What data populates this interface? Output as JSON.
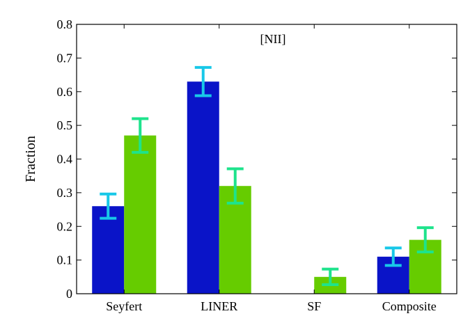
{
  "chart_data": {
    "type": "bar",
    "annotation": "[NII]",
    "ylabel": "Fraction",
    "xlabel": "",
    "categories": [
      "Seyfert",
      "LINER",
      "SF",
      "Composite"
    ],
    "ylim": [
      0,
      0.8
    ],
    "yticks": [
      0,
      0.1,
      0.2,
      0.3,
      0.4,
      0.5,
      0.6,
      0.7,
      0.8
    ],
    "ytick_labels": [
      "0",
      "0.1",
      "0.2",
      "0.3",
      "0.4",
      "0.5",
      "0.6",
      "0.7",
      "0.8"
    ],
    "grid": false,
    "legend": "none",
    "series": [
      {
        "color": "#0a14c8",
        "error_color": "#18c8e8",
        "values": [
          0.26,
          0.63,
          0.0,
          0.11
        ],
        "error": [
          0.036,
          0.042,
          0.0,
          0.026
        ]
      },
      {
        "color": "#66cc00",
        "error_color": "#1ee38c",
        "values": [
          0.47,
          0.32,
          0.05,
          0.16
        ],
        "error": [
          0.05,
          0.051,
          0.023,
          0.036
        ]
      }
    ]
  }
}
